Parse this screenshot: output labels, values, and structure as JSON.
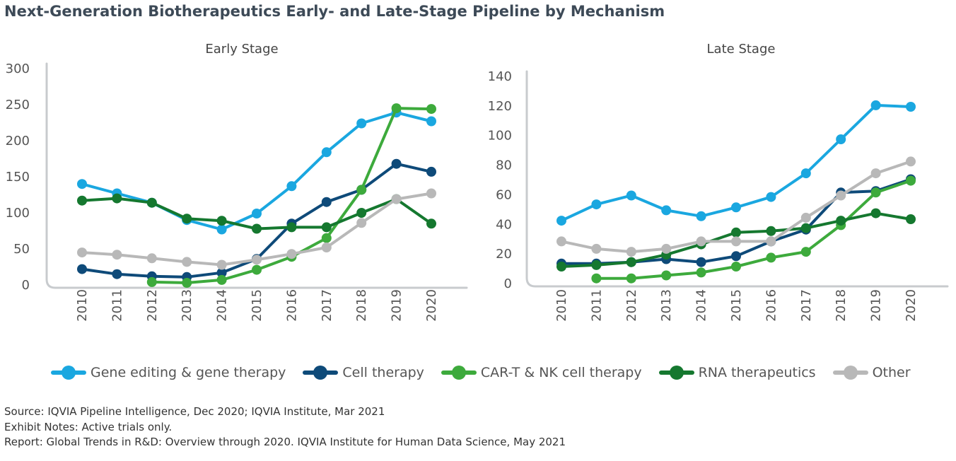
{
  "title": "Next-Generation Biotherapeutics Early- and Late-Stage Pipeline by Mechanism",
  "legend": [
    {
      "label": "Gene editing & gene therapy",
      "color": "#1aa7e0"
    },
    {
      "label": "Cell therapy",
      "color": "#0e4a79"
    },
    {
      "label": "CAR-T & NK cell therapy",
      "color": "#3daa3c"
    },
    {
      "label": "RNA therapeutics",
      "color": "#15782f"
    },
    {
      "label": "Other",
      "color": "#b8b8b8"
    }
  ],
  "notes": {
    "source": "Source: IQVIA Pipeline Intelligence, Dec 2020; IQVIA Institute, Mar 2021",
    "exhibit": "Exhibit Notes: Active trials only.",
    "report": "Report: Global Trends in R&D: Overview through 2020. IQVIA Institute for Human Data Science, May 2021"
  },
  "chart_data": [
    {
      "type": "line",
      "title": "Early Stage",
      "categories": [
        "2010",
        "2011",
        "2012",
        "2013",
        "2014",
        "2015",
        "2016",
        "2017",
        "2018",
        "2019",
        "2020"
      ],
      "ylim": [
        0,
        300
      ],
      "yticks": [
        0,
        50,
        100,
        150,
        200,
        250,
        300
      ],
      "grid": false,
      "series": [
        {
          "name": "Gene editing & gene therapy",
          "color": "#1aa7e0",
          "values": [
            139,
            126,
            113,
            89,
            76,
            98,
            136,
            183,
            223,
            238,
            226
          ]
        },
        {
          "name": "Cell therapy",
          "color": "#0e4a79",
          "values": [
            21,
            14,
            11,
            10,
            16,
            35,
            84,
            114,
            131,
            167,
            156
          ]
        },
        {
          "name": "CAR-T & NK cell therapy",
          "color": "#3daa3c",
          "values": [
            null,
            null,
            3,
            2,
            6,
            20,
            38,
            64,
            131,
            244,
            243
          ]
        },
        {
          "name": "RNA therapeutics",
          "color": "#15782f",
          "values": [
            116,
            119,
            113,
            91,
            88,
            77,
            79,
            79,
            99,
            118,
            84
          ]
        },
        {
          "name": "Other",
          "color": "#b8b8b8",
          "values": [
            44,
            41,
            36,
            31,
            27,
            34,
            42,
            51,
            85,
            118,
            126
          ]
        }
      ]
    },
    {
      "type": "line",
      "title": "Late Stage",
      "categories": [
        "2010",
        "2011",
        "2012",
        "2013",
        "2014",
        "2015",
        "2016",
        "2017",
        "2018",
        "2019",
        "2020"
      ],
      "ylim": [
        0,
        140
      ],
      "yticks": [
        0,
        20,
        40,
        60,
        80,
        100,
        120,
        140
      ],
      "grid": false,
      "series": [
        {
          "name": "Gene editing & gene therapy",
          "color": "#1aa7e0",
          "values": [
            42,
            53,
            59,
            49,
            45,
            51,
            58,
            74,
            97,
            120,
            119
          ]
        },
        {
          "name": "Cell therapy",
          "color": "#0e4a79",
          "values": [
            13,
            13,
            14,
            16,
            14,
            18,
            28,
            36,
            61,
            62,
            70
          ]
        },
        {
          "name": "CAR-T & NK cell therapy",
          "color": "#3daa3c",
          "values": [
            null,
            3,
            3,
            5,
            7,
            11,
            17,
            21,
            39,
            61,
            69
          ]
        },
        {
          "name": "RNA therapeutics",
          "color": "#15782f",
          "values": [
            11,
            12,
            14,
            19,
            26,
            34,
            35,
            37,
            42,
            47,
            43
          ]
        },
        {
          "name": "Other",
          "color": "#b8b8b8",
          "values": [
            28,
            23,
            21,
            23,
            28,
            28,
            28,
            44,
            59,
            74,
            82
          ]
        }
      ]
    }
  ]
}
